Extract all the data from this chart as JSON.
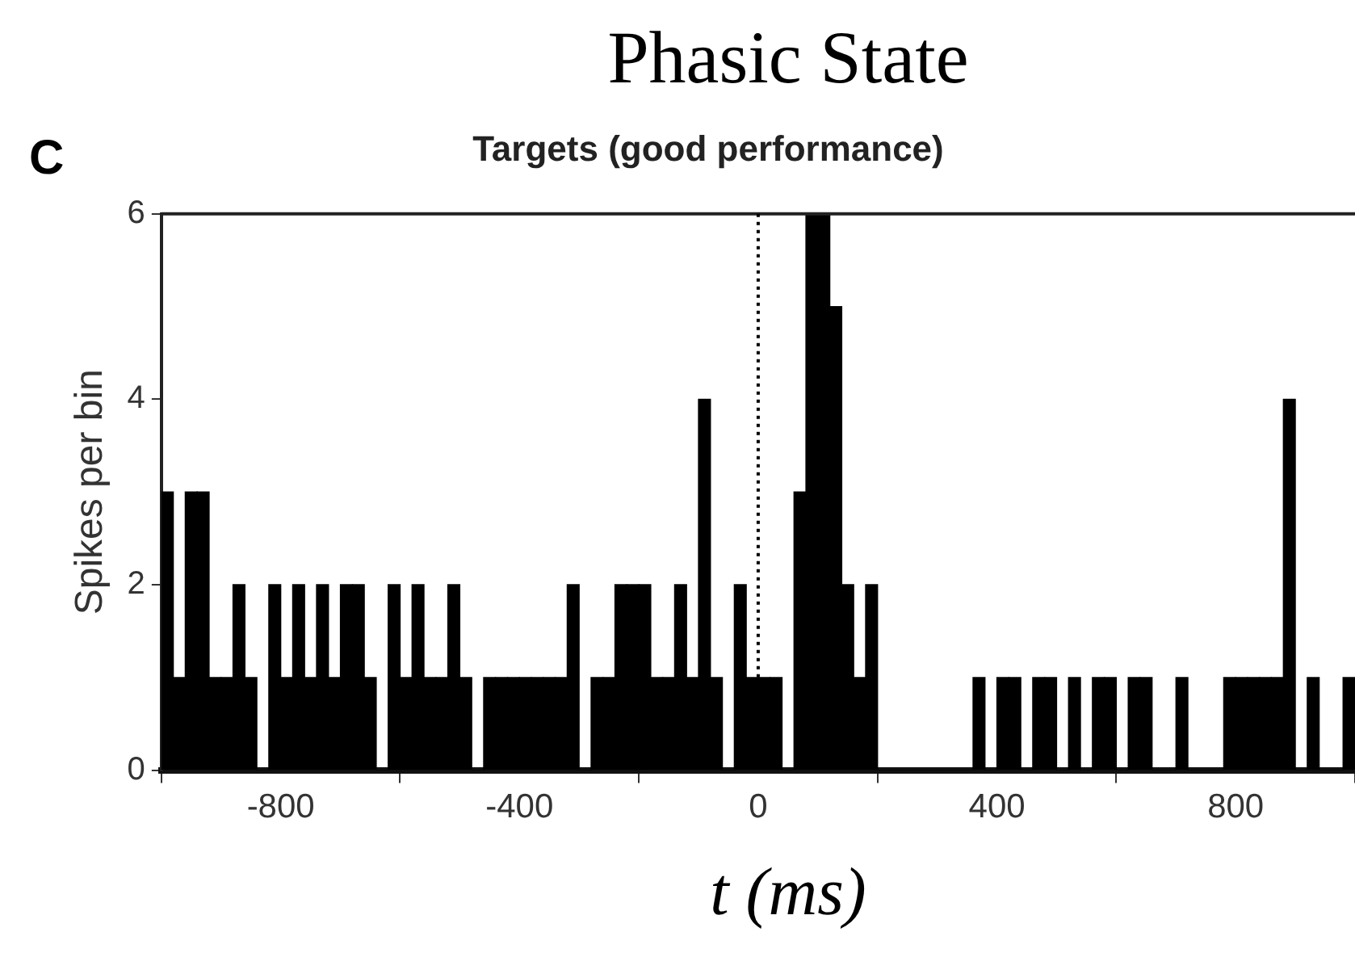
{
  "chart_data": {
    "type": "histogram",
    "title": "Phasic State",
    "subtitle": "Targets (good performance)",
    "xlabel": "t (ms)",
    "ylabel": "Spikes per bin",
    "annotations": [
      "C"
    ],
    "bins": [
      -1000,
      -980,
      -960,
      -940,
      -920,
      -900,
      -880,
      -860,
      -840,
      -820,
      -800,
      -780,
      -760,
      -740,
      -720,
      -700,
      -680,
      -660,
      -640,
      -620,
      -600,
      -580,
      -560,
      -540,
      -520,
      -500,
      -480,
      -460,
      -440,
      -420,
      -400,
      -380,
      -360,
      -340,
      -320,
      -300,
      -280,
      -260,
      -240,
      -220,
      -200,
      -180,
      -160,
      -140,
      -120,
      -100,
      -80,
      -60,
      -40,
      -20,
      0,
      20,
      40,
      60,
      80,
      100,
      120,
      140,
      160,
      180,
      200,
      220,
      240,
      260,
      280,
      300,
      320,
      340,
      360,
      380,
      400,
      420,
      440,
      460,
      480,
      500,
      520,
      540,
      560,
      580,
      600,
      620,
      640,
      660,
      680,
      700,
      720,
      740,
      760,
      780,
      800,
      820,
      840,
      860,
      880,
      900,
      920,
      940,
      960,
      980,
      1000
    ],
    "values": [
      3,
      1,
      3,
      3,
      1,
      1,
      2,
      1,
      0,
      2,
      1,
      2,
      1,
      2,
      1,
      2,
      2,
      1,
      0,
      2,
      1,
      2,
      1,
      1,
      2,
      1,
      0,
      1,
      1,
      1,
      1,
      1,
      1,
      1,
      2,
      0,
      1,
      1,
      2,
      2,
      2,
      1,
      1,
      2,
      1,
      4,
      1,
      0,
      2,
      1,
      1,
      1,
      0,
      3,
      6,
      6,
      5,
      2,
      1,
      2,
      0,
      0,
      0,
      0,
      0,
      0,
      0,
      0,
      1,
      0,
      1,
      1,
      0,
      1,
      1,
      0,
      1,
      0,
      1,
      1,
      0,
      1,
      1,
      0,
      0,
      1,
      0,
      0,
      0,
      1,
      1,
      1,
      1,
      1,
      4,
      0,
      1,
      0,
      0,
      1
    ],
    "color": "#000000",
    "xlim": [
      -1000,
      1000
    ],
    "xticks": [
      -800,
      -400,
      0,
      400,
      800
    ],
    "ylim": [
      0,
      6
    ],
    "yticks": [
      0,
      2,
      4,
      6
    ],
    "ref_lines": [
      {
        "axis": "x",
        "value": 0,
        "line_style": "dotted",
        "color": "#000000"
      }
    ],
    "grid": false,
    "legend": false
  }
}
